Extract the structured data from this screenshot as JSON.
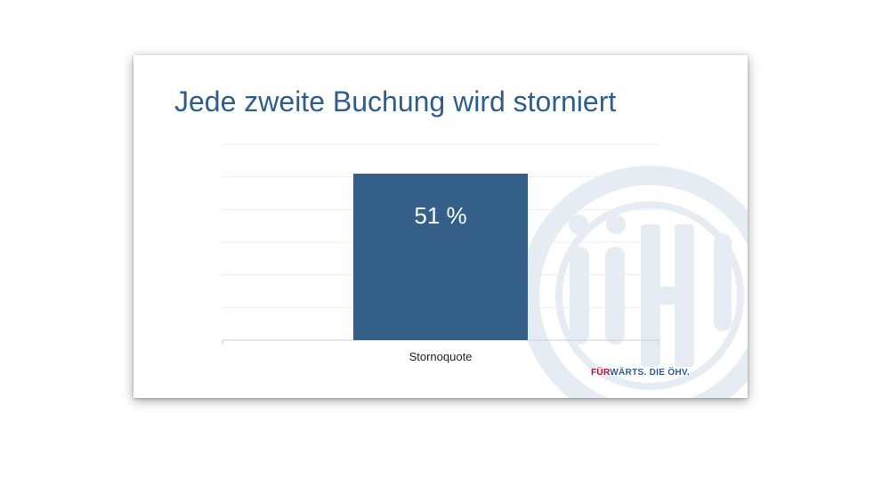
{
  "slide": {
    "title": "Jede zweite Buchung wird storniert",
    "footer": {
      "highlight": "FÜR",
      "rest": "WÄRTS. DIE ÖHV."
    },
    "watermark": {
      "text": "ÖHV",
      "description_icon": "oehv-logo-icon"
    }
  },
  "colors": {
    "title": "#2f5d8c",
    "bar": "#335f88",
    "gridline": "#eeeeee",
    "watermark": "#e6ecf3",
    "footer_highlight": "#c8102e",
    "footer_text": "#2f5d8c"
  },
  "chart_data": {
    "type": "bar",
    "categories": [
      "Stornoquote"
    ],
    "values": [
      51
    ],
    "data_labels": [
      "51 %"
    ],
    "ylim": [
      0,
      60
    ],
    "grid": true,
    "legend": "none",
    "title": "",
    "xlabel": "",
    "ylabel": ""
  }
}
